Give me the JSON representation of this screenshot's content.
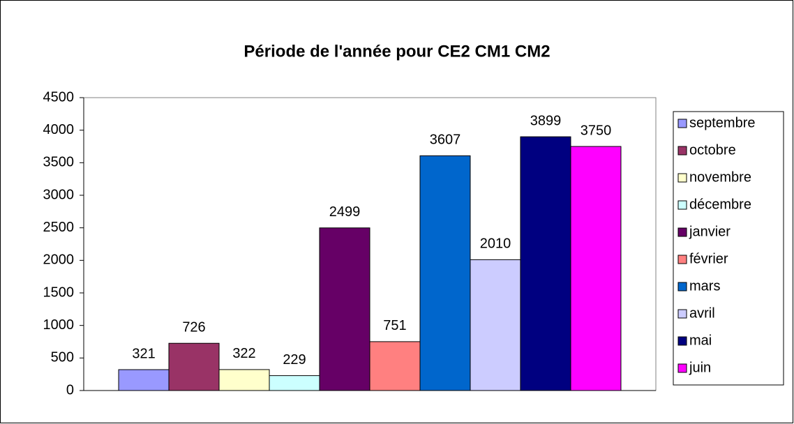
{
  "chart_data": {
    "type": "bar",
    "title": "Période de l'année pour CE2 CM1 CM2",
    "categories": [
      null
    ],
    "series": [
      {
        "name": "septembre",
        "color": "#9999ff",
        "values": [
          321
        ]
      },
      {
        "name": "octobre",
        "color": "#993366",
        "values": [
          726
        ]
      },
      {
        "name": "novembre",
        "color": "#ffffcc",
        "values": [
          322
        ]
      },
      {
        "name": "décembre",
        "color": "#ccffff",
        "values": [
          229
        ]
      },
      {
        "name": "janvier",
        "color": "#660066",
        "values": [
          2499
        ]
      },
      {
        "name": "février",
        "color": "#ff8080",
        "values": [
          751
        ]
      },
      {
        "name": "mars",
        "color": "#0066cc",
        "values": [
          3607
        ]
      },
      {
        "name": "avril",
        "color": "#ccccff",
        "values": [
          2010
        ]
      },
      {
        "name": "mai",
        "color": "#000080",
        "values": [
          3899
        ]
      },
      {
        "name": "juin",
        "color": "#ff00ff",
        "values": [
          3750
        ]
      }
    ],
    "ylim": [
      0,
      4500
    ],
    "yticks": [
      0,
      500,
      1000,
      1500,
      2000,
      2500,
      3000,
      3500,
      4000,
      4500
    ],
    "grid": false,
    "legend": "right"
  }
}
